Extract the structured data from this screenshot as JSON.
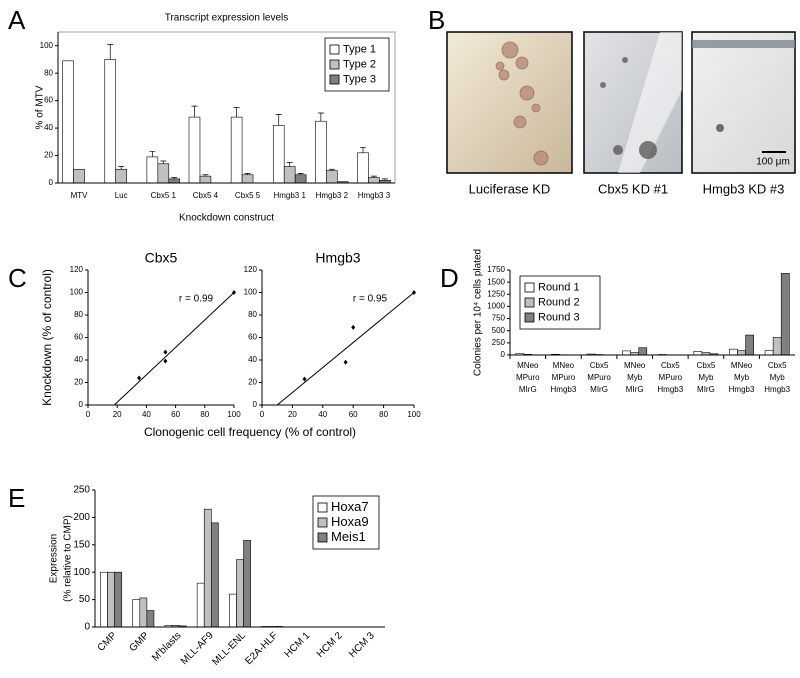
{
  "chart_data": [
    {
      "panel": "A",
      "type": "bar",
      "title": "Transcript expression levels",
      "ylabel": "% of MTV",
      "xlabel": "Knockdown construct",
      "categories": [
        "MTV",
        "Luc",
        "Cbx5 1",
        "Cbx5 4",
        "Cbx5 5",
        "Hmgb3 1",
        "Hmgb3 2",
        "Hmgb3 3"
      ],
      "series": [
        {
          "name": "Type 1",
          "color": "#ffffff",
          "values": [
            89,
            90,
            19,
            48,
            48,
            42,
            45,
            22
          ],
          "errors": [
            null,
            11,
            4,
            8,
            7,
            8,
            6,
            4
          ]
        },
        {
          "name": "Type 2",
          "color": "#c0c0c0",
          "values": [
            10,
            10,
            14,
            5,
            6,
            12,
            9,
            4
          ],
          "errors": [
            null,
            2,
            2,
            1,
            1,
            3,
            1,
            1
          ]
        },
        {
          "name": "Type 3",
          "color": "#808080",
          "values": [
            0,
            0,
            3,
            0,
            0,
            6,
            1,
            2
          ],
          "errors": [
            null,
            null,
            1,
            null,
            null,
            1,
            null,
            1
          ]
        }
      ],
      "ylim": [
        0,
        110
      ],
      "yticks": [
        0,
        20,
        40,
        60,
        80,
        100
      ],
      "legend": "upper right",
      "frame": true
    },
    {
      "panel": "B",
      "type": "image",
      "captions": [
        "Luciferase KD",
        "Cbx5 KD #1",
        "Hmgb3 KD #3"
      ],
      "scale_bar": "100 μm"
    },
    {
      "panel": "C",
      "type": "scatter",
      "title": "Cbx5",
      "ylabel": "Knockdown (% of  control)",
      "xlabel": "Clonogenic cell frequency (% of control)",
      "annotation": "r = 0.99",
      "x": [
        35,
        53,
        53,
        100
      ],
      "y": [
        24,
        47,
        39,
        100
      ],
      "trendline": {
        "x": [
          18,
          100
        ],
        "y": [
          0,
          100
        ]
      },
      "xlim": [
        0,
        100
      ],
      "xticks": [
        0,
        20,
        40,
        60,
        80,
        100
      ],
      "ylim": [
        0,
        120
      ],
      "yticks": [
        0,
        20,
        40,
        60,
        80,
        100,
        120
      ],
      "color": "#000000"
    },
    {
      "type": "scatter",
      "title": "Hmgb3",
      "annotation": "r = 0.95",
      "x": [
        28,
        55,
        60,
        100
      ],
      "y": [
        23,
        38,
        69,
        100
      ],
      "trendline": {
        "x": [
          10,
          100
        ],
        "y": [
          0,
          100
        ]
      },
      "xlim": [
        0,
        100
      ],
      "xticks": [
        0,
        20,
        40,
        60,
        80,
        100
      ],
      "ylim": [
        0,
        120
      ],
      "yticks": [
        0,
        20,
        40,
        60,
        80,
        100,
        120
      ],
      "color": "#000000"
    },
    {
      "panel": "D",
      "type": "bar",
      "ylabel": "Colonies per 10⁴ cells plated",
      "categories": [
        [
          "MNeo",
          "MPuro",
          "MIrG"
        ],
        [
          "MNeo",
          "MPuro",
          "Hmgb3"
        ],
        [
          "Cbx5",
          "MPuro",
          "MIrG"
        ],
        [
          "MNeo",
          "Myb",
          "MIrG"
        ],
        [
          "Cbx5",
          "MPuro",
          "Hmgb3"
        ],
        [
          "Cbx5",
          "Myb",
          "MIrG"
        ],
        [
          "MNeo",
          "Myb",
          "Hmgb3"
        ],
        [
          "Cbx5",
          "Myb",
          "Hmgb3"
        ]
      ],
      "series": [
        {
          "name": "Round 1",
          "color": "#ffffff",
          "values": [
            30,
            15,
            20,
            85,
            10,
            75,
            120,
            95
          ]
        },
        {
          "name": "Round 2",
          "color": "#c0c0c0",
          "values": [
            15,
            5,
            10,
            50,
            3,
            50,
            90,
            360
          ]
        },
        {
          "name": "Round 3",
          "color": "#808080",
          "values": [
            5,
            0,
            0,
            150,
            0,
            25,
            410,
            1680
          ]
        }
      ],
      "ylim": [
        0,
        1750
      ],
      "yticks": [
        0,
        250,
        500,
        750,
        1000,
        1250,
        1500,
        1750
      ],
      "legend": "upper left",
      "frame": false
    },
    {
      "panel": "E",
      "type": "bar",
      "ylabel": [
        "Expression",
        "(% relative to CMP)"
      ],
      "categories": [
        "CMP",
        "GMP",
        "M'blasts",
        "MLL-AF9",
        "MLL-ENL",
        "E2A-HLF",
        "HCM 1",
        "HCM 2",
        "HCM 3"
      ],
      "series": [
        {
          "name": "Hoxa7",
          "color": "#ffffff",
          "values": [
            100,
            50,
            3,
            80,
            60,
            1,
            0,
            0,
            0
          ]
        },
        {
          "name": "Hoxa9",
          "color": "#c0c0c0",
          "values": [
            100,
            53,
            3,
            215,
            123,
            1,
            0,
            0,
            0
          ]
        },
        {
          "name": "Meis1",
          "color": "#808080",
          "values": [
            100,
            30,
            2,
            190,
            158,
            1,
            0,
            0,
            0
          ]
        }
      ],
      "ylim": [
        0,
        250
      ],
      "yticks": [
        0,
        50,
        100,
        150,
        200,
        250
      ],
      "legend": "upper right",
      "frame": false
    }
  ]
}
